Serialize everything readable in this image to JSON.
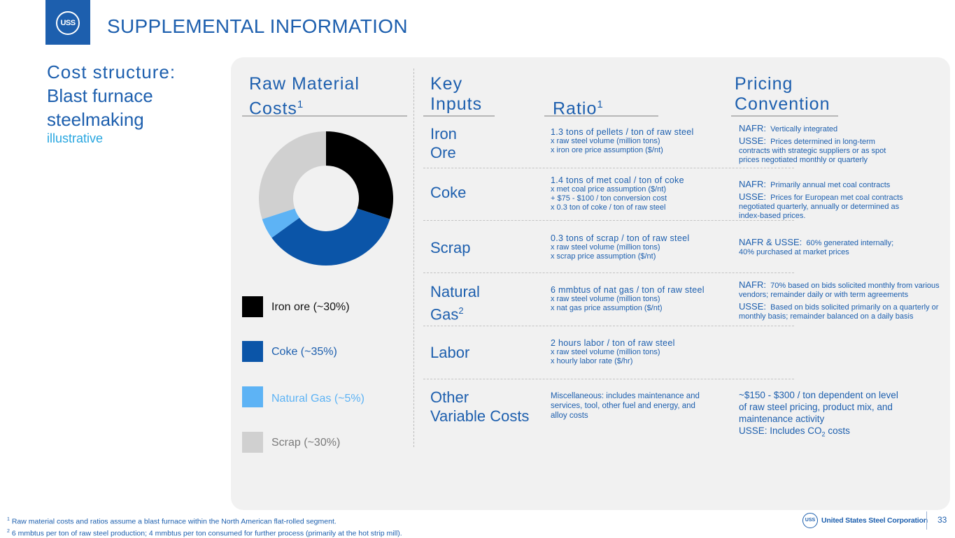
{
  "header": {
    "title": "SUPPLEMENTAL INFORMATION",
    "logo_text": "USS"
  },
  "sidebar": {
    "title_line1": "Cost structure:",
    "title_line2": "Blast furnace",
    "title_line3": "steelmaking",
    "subtitle": "illustrative"
  },
  "columns": {
    "raw_material": {
      "line1": "Raw Material",
      "line2": "Costs",
      "sup": "1"
    },
    "key_inputs": {
      "line1": "Key",
      "line2": "Inputs"
    },
    "ratio": {
      "label": "Ratio",
      "sup": "1"
    },
    "pricing": {
      "line1": "Pricing",
      "line2": "Convention"
    }
  },
  "chart_data": {
    "type": "pie",
    "donut": true,
    "categories": [
      "Iron ore (~30%)",
      "Coke (~35%)",
      "Natural Gas (~5%)",
      "Scrap (~30%)"
    ],
    "values": [
      30,
      35,
      5,
      30
    ],
    "colors": [
      "#000000",
      "#0b55a8",
      "#5db3f5",
      "#d0d0d0"
    ],
    "legend_text_colors": [
      "#111111",
      "#1d5fae",
      "#5db3f5",
      "#7a7a7a"
    ]
  },
  "rows": [
    {
      "input_line1": "Iron",
      "input_line2": "Ore",
      "input_sup": "",
      "ratio_first": "1.3 tons of pellets / ton of raw steel",
      "ratio_rest": [
        "x raw steel volume (million tons)",
        "x iron ore price assumption ($/nt)"
      ],
      "pricing": [
        {
          "label": "NAFR:",
          "text": "Vertically integrated"
        },
        {
          "label": "USSE:",
          "text": "Prices determined in long-term contracts with strategic suppliers or as spot prices negotiated monthly or quarterly"
        }
      ]
    },
    {
      "input_line1": "Coke",
      "input_line2": "",
      "input_sup": "",
      "ratio_first": "1.4 tons of met coal / ton of coke",
      "ratio_rest": [
        "x met coal price assumption ($/nt)",
        "+ $75 - $100 / ton conversion cost",
        "x 0.3 ton of coke / ton of raw steel"
      ],
      "pricing": [
        {
          "label": "NAFR:",
          "text": "Primarily annual met coal contracts"
        },
        {
          "label": "USSE:",
          "text": "Prices for European met coal contracts negotiated quarterly, annually or determined as index-based prices."
        }
      ]
    },
    {
      "input_line1": "Scrap",
      "input_line2": "",
      "input_sup": "",
      "ratio_first": "0.3 tons of scrap / ton of raw steel",
      "ratio_rest": [
        "x raw steel volume (million tons)",
        "x scrap price assumption ($/nt)"
      ],
      "pricing": [
        {
          "label": "NAFR & USSE:",
          "text": "60% generated internally; 40% purchased at market prices"
        }
      ]
    },
    {
      "input_line1": "Natural",
      "input_line2": "Gas",
      "input_sup": "2",
      "ratio_first": "6 mmbtus of nat gas / ton of raw steel",
      "ratio_rest": [
        "x raw steel volume (million tons)",
        "x nat gas price assumption ($/nt)"
      ],
      "pricing": [
        {
          "label": "NAFR:",
          "text": "70% based on bids solicited monthly from various vendors; remainder daily or with term agreements"
        },
        {
          "label": "USSE:",
          "text": "Based on bids solicited primarily on a quarterly or monthly basis; remainder balanced on a daily basis"
        }
      ]
    },
    {
      "input_line1": "Labor",
      "input_line2": "",
      "input_sup": "",
      "ratio_first": "2 hours labor / ton of raw steel",
      "ratio_rest": [
        "x raw steel volume (million tons)",
        "x hourly labor rate ($/hr)"
      ],
      "pricing": []
    },
    {
      "input_line1": "Other",
      "input_line2": "Variable Costs",
      "input_sup": "",
      "ratio_text": "Miscellaneous:  includes maintenance and services, tool, other fuel and energy, and alloy costs",
      "pricing_text": "~$150 - $300 / ton dependent on level of raw steel pricing, product mix, and maintenance activity",
      "pricing_text2_pre": "USSE:  Includes CO",
      "pricing_text2_sub": "2",
      "pricing_text2_post": " costs"
    }
  ],
  "footnotes": {
    "note1_mark": "1",
    "note1": " Raw material costs and ratios assume a blast furnace within the North American flat-rolled segment.",
    "note2_mark": "2",
    "note2": " 6 mmbtus per ton of raw steel production; 4 mmbtus per ton consumed for further process (primarily at the hot strip mill)."
  },
  "footer": {
    "company": "United States Steel Corporation",
    "page_number": "33"
  }
}
